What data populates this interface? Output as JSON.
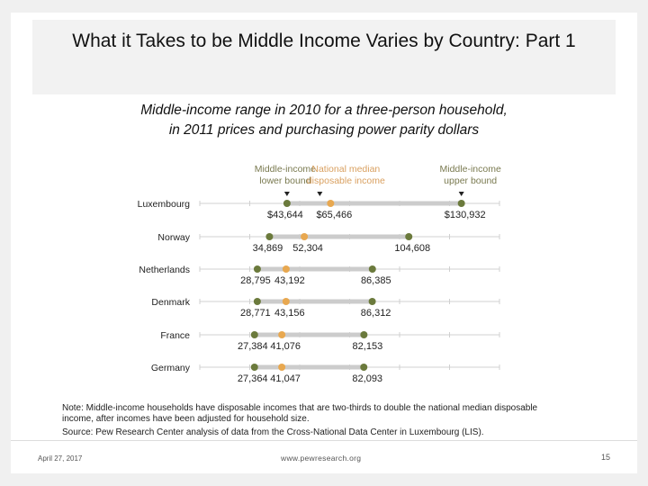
{
  "slide": {
    "title": "What it Takes to be Middle Income Varies by Country: Part 1",
    "subtitle_line1": "Middle-income range in 2010 for a three-person household,",
    "subtitle_line2": "in 2011 prices and purchasing power parity dollars",
    "note": "Note: Middle-income households have disposable incomes that are two-thirds to double the national median disposable income, after incomes have been adjusted for household size.",
    "source": "Source: Pew Research Center analysis of data from the Cross-National Data Center in Luxembourg (LIS).",
    "footer": {
      "date": "April 27, 2017",
      "url": "www.pewresearch.org",
      "page": "15"
    }
  },
  "legend": {
    "lower": [
      "Middle-income",
      "lower bound"
    ],
    "median": [
      "National median",
      "disposable income"
    ],
    "upper": [
      "Middle-income",
      "upper bound"
    ]
  },
  "colors": {
    "lower_upper": "#6b7a3c",
    "median": "#e8a850",
    "range_bar": "#cccccc",
    "axis": "#d0d0d0",
    "legend_green": "#7a7a50",
    "legend_orange": "#d9a060"
  },
  "chart_data": {
    "type": "dot-range",
    "title": "Middle-income range in 2010 for a three-person household, in 2011 prices and purchasing power parity dollars",
    "xlabel": "",
    "ylabel": "",
    "xlim": [
      0,
      150000
    ],
    "x_ticks": [
      0,
      25000,
      50000,
      75000,
      100000,
      125000,
      150000
    ],
    "grid": false,
    "legend_position": "top",
    "categories": [
      "Luxembourg",
      "Norway",
      "Netherlands",
      "Denmark",
      "France",
      "Germany"
    ],
    "series": [
      {
        "name": "Middle-income lower bound",
        "values": [
          43644,
          34869,
          28795,
          28771,
          27384,
          27364
        ]
      },
      {
        "name": "National median disposable income",
        "values": [
          65466,
          52304,
          43192,
          43156,
          41076,
          41047
        ]
      },
      {
        "name": "Middle-income upper bound",
        "values": [
          130932,
          104608,
          86385,
          86312,
          82153,
          82093
        ]
      }
    ],
    "labels": [
      [
        "$43,644",
        "$65,466",
        "$130,932"
      ],
      [
        "34,869",
        "52,304",
        "104,608"
      ],
      [
        "28,795",
        "43,192",
        "86,385"
      ],
      [
        "28,771",
        "43,156",
        "86,312"
      ],
      [
        "27,384",
        "41,076",
        "82,153"
      ],
      [
        "27,364",
        "41,047",
        "82,093"
      ]
    ]
  }
}
